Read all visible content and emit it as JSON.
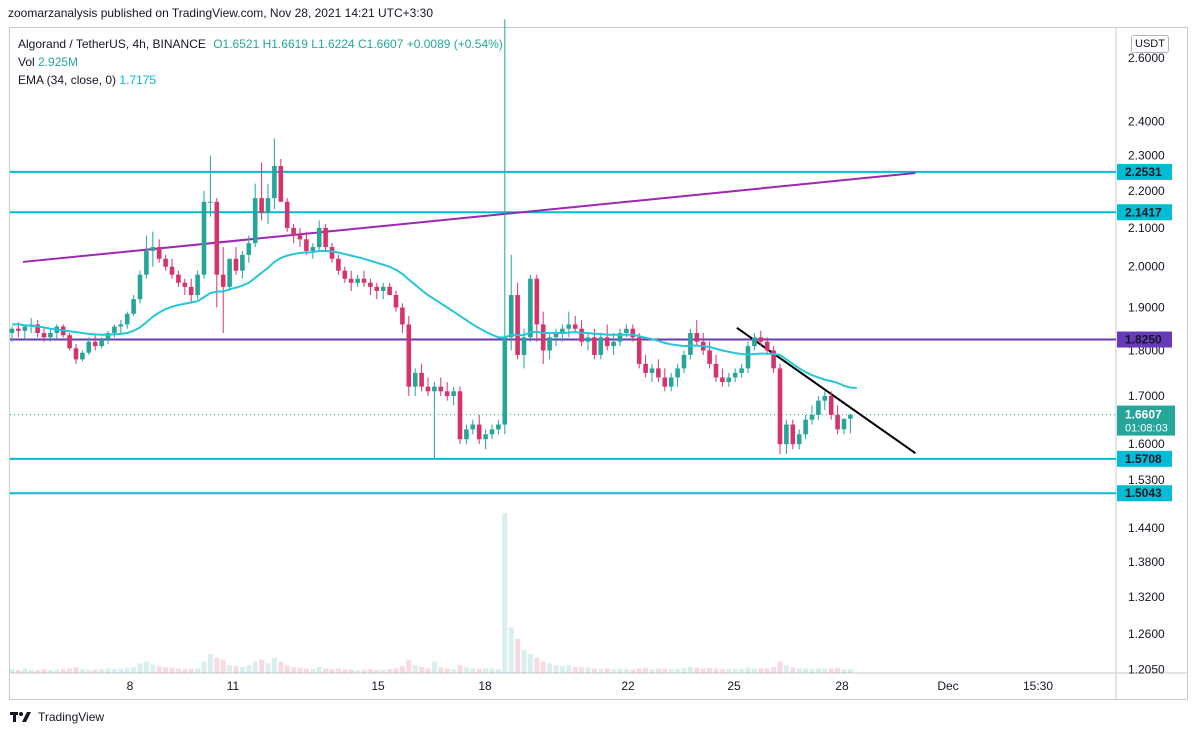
{
  "header": {
    "publish_line": "zoomarzanalysis published on TradingView.com, Nov 28, 2021 14:21 UTC+3:30"
  },
  "legend": {
    "symbol": "Algorand / TetherUS, 4h, BINANCE",
    "ohlc": "O1.6521 H1.6619 L1.6224 C1.6607 +0.0089 (+0.54%)",
    "vol_label": "Vol",
    "vol_value": "2.925M",
    "ema_label": "EMA (34, close, 0)",
    "ema_value": "1.7175"
  },
  "currency_label": "USDT",
  "footer": {
    "brand": "TradingView"
  },
  "colors": {
    "up": "#26a69a",
    "down": "#d6336c",
    "ema": "#26c6da",
    "level": "#00bcd4",
    "purple": "#9c27b0",
    "dark_purple": "#673ab7",
    "trend": "#000000"
  },
  "chart_data": {
    "type": "candlestick",
    "series": [
      {
        "name": "Algorand / TetherUS, 4h, BINANCE"
      },
      {
        "name": "EMA (34, close, 0)"
      }
    ],
    "x_ticks": [
      "8",
      "11",
      "15",
      "18",
      "22",
      "25",
      "28",
      "Dec",
      "15:30"
    ],
    "y_ticks": [
      "2.6000",
      "2.4000",
      "2.3000",
      "2.2000",
      "2.1000",
      "2.0000",
      "1.9000",
      "1.8000",
      "1.7000",
      "1.6000",
      "1.5300",
      "1.4400",
      "1.3800",
      "1.3200",
      "1.2600",
      "1.2050"
    ],
    "y_scale": "log",
    "ylim": [
      1.2,
      2.7
    ],
    "horizontal_levels": [
      {
        "value": 2.2531,
        "label": "2.2531",
        "color": "#00bcd4"
      },
      {
        "value": 2.1417,
        "label": "2.1417",
        "color": "#00bcd4"
      },
      {
        "value": 1.825,
        "label": "1.8250",
        "color": "#673ab7"
      },
      {
        "value": 1.5708,
        "label": "1.5708",
        "color": "#00bcd4"
      },
      {
        "value": 1.5043,
        "label": "1.5043",
        "color": "#00bcd4"
      }
    ],
    "current_price": {
      "value": 1.6607,
      "label": "1.6607",
      "countdown": "01:08:03"
    },
    "candles": [
      [
        1.84,
        1.855,
        1.82,
        1.85
      ],
      [
        1.85,
        1.865,
        1.83,
        1.845
      ],
      [
        1.845,
        1.86,
        1.825,
        1.855
      ],
      [
        1.855,
        1.875,
        1.84,
        1.86
      ],
      [
        1.86,
        1.87,
        1.83,
        1.84
      ],
      [
        1.84,
        1.855,
        1.82,
        1.83
      ],
      [
        1.83,
        1.85,
        1.82,
        1.84
      ],
      [
        1.84,
        1.86,
        1.825,
        1.855
      ],
      [
        1.855,
        1.86,
        1.83,
        1.835
      ],
      [
        1.835,
        1.84,
        1.8,
        1.805
      ],
      [
        1.805,
        1.815,
        1.77,
        1.78
      ],
      [
        1.78,
        1.8,
        1.775,
        1.795
      ],
      [
        1.795,
        1.83,
        1.79,
        1.82
      ],
      [
        1.82,
        1.835,
        1.8,
        1.81
      ],
      [
        1.81,
        1.83,
        1.805,
        1.825
      ],
      [
        1.825,
        1.845,
        1.815,
        1.84
      ],
      [
        1.84,
        1.86,
        1.83,
        1.855
      ],
      [
        1.855,
        1.87,
        1.84,
        1.86
      ],
      [
        1.86,
        1.89,
        1.85,
        1.885
      ],
      [
        1.885,
        1.93,
        1.88,
        1.92
      ],
      [
        1.92,
        1.99,
        1.91,
        1.98
      ],
      [
        1.98,
        2.08,
        1.97,
        2.04
      ],
      [
        2.04,
        2.09,
        2.0,
        2.05
      ],
      [
        2.05,
        2.07,
        2.01,
        2.02
      ],
      [
        2.02,
        2.03,
        1.99,
        2.0
      ],
      [
        2.0,
        2.02,
        1.97,
        1.98
      ],
      [
        1.98,
        1.99,
        1.95,
        1.96
      ],
      [
        1.96,
        1.97,
        1.93,
        1.95
      ],
      [
        1.95,
        1.97,
        1.91,
        1.93
      ],
      [
        1.93,
        1.99,
        1.92,
        1.98
      ],
      [
        1.98,
        2.2,
        1.97,
        2.17
      ],
      [
        2.17,
        2.3,
        2.13,
        2.17
      ],
      [
        2.17,
        2.18,
        1.9,
        1.98
      ],
      [
        1.98,
        2.05,
        1.84,
        1.95
      ],
      [
        1.95,
        2.02,
        1.94,
        2.02
      ],
      [
        2.02,
        2.05,
        1.98,
        1.99
      ],
      [
        1.99,
        2.04,
        1.97,
        2.03
      ],
      [
        2.03,
        2.08,
        2.01,
        2.06
      ],
      [
        2.06,
        2.22,
        2.05,
        2.18
      ],
      [
        2.18,
        2.28,
        2.12,
        2.14
      ],
      [
        2.14,
        2.22,
        2.11,
        2.18
      ],
      [
        2.18,
        2.35,
        2.15,
        2.27
      ],
      [
        2.27,
        2.29,
        2.17,
        2.17
      ],
      [
        2.17,
        2.18,
        2.09,
        2.1
      ],
      [
        2.1,
        2.11,
        2.06,
        2.08
      ],
      [
        2.08,
        2.1,
        2.05,
        2.07
      ],
      [
        2.07,
        2.09,
        2.03,
        2.04
      ],
      [
        2.04,
        2.06,
        2.02,
        2.05
      ],
      [
        2.05,
        2.12,
        2.04,
        2.1
      ],
      [
        2.1,
        2.11,
        2.04,
        2.05
      ],
      [
        2.05,
        2.06,
        2.01,
        2.02
      ],
      [
        2.02,
        2.03,
        1.98,
        1.99
      ],
      [
        1.99,
        2.0,
        1.96,
        1.97
      ],
      [
        1.97,
        1.99,
        1.94,
        1.96
      ],
      [
        1.96,
        1.98,
        1.95,
        1.97
      ],
      [
        1.97,
        1.99,
        1.95,
        1.96
      ],
      [
        1.96,
        1.97,
        1.93,
        1.95
      ],
      [
        1.95,
        1.96,
        1.92,
        1.94
      ],
      [
        1.94,
        1.96,
        1.92,
        1.95
      ],
      [
        1.95,
        1.96,
        1.93,
        1.93
      ],
      [
        1.93,
        1.94,
        1.89,
        1.9
      ],
      [
        1.9,
        1.91,
        1.84,
        1.86
      ],
      [
        1.86,
        1.88,
        1.7,
        1.72
      ],
      [
        1.72,
        1.76,
        1.7,
        1.75
      ],
      [
        1.75,
        1.77,
        1.71,
        1.72
      ],
      [
        1.72,
        1.74,
        1.7,
        1.71
      ],
      [
        1.71,
        1.73,
        1.57,
        1.72
      ],
      [
        1.72,
        1.74,
        1.7,
        1.71
      ],
      [
        1.71,
        1.73,
        1.69,
        1.7
      ],
      [
        1.7,
        1.72,
        1.68,
        1.71
      ],
      [
        1.71,
        1.72,
        1.6,
        1.61
      ],
      [
        1.61,
        1.64,
        1.6,
        1.63
      ],
      [
        1.63,
        1.65,
        1.62,
        1.64
      ],
      [
        1.64,
        1.66,
        1.6,
        1.61
      ],
      [
        1.61,
        1.63,
        1.59,
        1.62
      ],
      [
        1.62,
        1.64,
        1.61,
        1.63
      ],
      [
        1.63,
        1.65,
        1.62,
        1.64
      ],
      [
        1.64,
        2.73,
        1.62,
        1.83
      ],
      [
        1.83,
        2.03,
        1.8,
        1.93
      ],
      [
        1.93,
        1.96,
        1.78,
        1.79
      ],
      [
        1.79,
        1.85,
        1.76,
        1.83
      ],
      [
        1.83,
        1.98,
        1.82,
        1.97
      ],
      [
        1.97,
        1.98,
        1.82,
        1.86
      ],
      [
        1.86,
        1.89,
        1.77,
        1.8
      ],
      [
        1.8,
        1.84,
        1.78,
        1.83
      ],
      [
        1.83,
        1.85,
        1.81,
        1.84
      ],
      [
        1.84,
        1.86,
        1.82,
        1.85
      ],
      [
        1.85,
        1.89,
        1.83,
        1.86
      ],
      [
        1.86,
        1.88,
        1.84,
        1.85
      ],
      [
        1.85,
        1.87,
        1.81,
        1.82
      ],
      [
        1.82,
        1.84,
        1.8,
        1.83
      ],
      [
        1.83,
        1.85,
        1.78,
        1.79
      ],
      [
        1.79,
        1.84,
        1.78,
        1.83
      ],
      [
        1.83,
        1.86,
        1.8,
        1.81
      ],
      [
        1.81,
        1.84,
        1.79,
        1.82
      ],
      [
        1.82,
        1.85,
        1.81,
        1.84
      ],
      [
        1.84,
        1.86,
        1.83,
        1.85
      ],
      [
        1.85,
        1.86,
        1.82,
        1.83
      ],
      [
        1.83,
        1.84,
        1.76,
        1.77
      ],
      [
        1.77,
        1.79,
        1.74,
        1.75
      ],
      [
        1.75,
        1.77,
        1.73,
        1.76
      ],
      [
        1.76,
        1.78,
        1.73,
        1.74
      ],
      [
        1.74,
        1.76,
        1.71,
        1.72
      ],
      [
        1.72,
        1.75,
        1.71,
        1.74
      ],
      [
        1.74,
        1.77,
        1.72,
        1.76
      ],
      [
        1.76,
        1.8,
        1.75,
        1.79
      ],
      [
        1.79,
        1.85,
        1.78,
        1.84
      ],
      [
        1.84,
        1.87,
        1.81,
        1.82
      ],
      [
        1.82,
        1.84,
        1.79,
        1.8
      ],
      [
        1.8,
        1.82,
        1.76,
        1.77
      ],
      [
        1.77,
        1.79,
        1.73,
        1.74
      ],
      [
        1.74,
        1.76,
        1.72,
        1.73
      ],
      [
        1.73,
        1.75,
        1.72,
        1.74
      ],
      [
        1.74,
        1.76,
        1.73,
        1.75
      ],
      [
        1.75,
        1.77,
        1.74,
        1.76
      ],
      [
        1.76,
        1.82,
        1.75,
        1.81
      ],
      [
        1.81,
        1.84,
        1.8,
        1.83
      ],
      [
        1.83,
        1.845,
        1.81,
        1.82
      ],
      [
        1.82,
        1.83,
        1.79,
        1.8
      ],
      [
        1.8,
        1.81,
        1.75,
        1.76
      ],
      [
        1.76,
        1.77,
        1.58,
        1.6
      ],
      [
        1.6,
        1.65,
        1.58,
        1.64
      ],
      [
        1.64,
        1.65,
        1.59,
        1.6
      ],
      [
        1.6,
        1.63,
        1.59,
        1.62
      ],
      [
        1.62,
        1.66,
        1.61,
        1.65
      ],
      [
        1.65,
        1.68,
        1.64,
        1.66
      ],
      [
        1.66,
        1.7,
        1.65,
        1.69
      ],
      [
        1.69,
        1.71,
        1.67,
        1.7
      ],
      [
        1.7,
        1.71,
        1.65,
        1.66
      ],
      [
        1.66,
        1.68,
        1.62,
        1.63
      ],
      [
        1.63,
        1.65,
        1.62,
        1.652
      ],
      [
        1.652,
        1.662,
        1.622,
        1.6607
      ]
    ],
    "ema": [
      1.86,
      1.86,
      1.858,
      1.857,
      1.855,
      1.853,
      1.85,
      1.848,
      1.846,
      1.844,
      1.842,
      1.84,
      1.838,
      1.837,
      1.836,
      1.836,
      1.837,
      1.838,
      1.84,
      1.845,
      1.853,
      1.865,
      1.878,
      1.888,
      1.896,
      1.902,
      1.906,
      1.909,
      1.912,
      1.915,
      1.925,
      1.935,
      1.938,
      1.939,
      1.944,
      1.948,
      1.953,
      1.96,
      1.972,
      1.985,
      1.997,
      2.012,
      2.022,
      2.028,
      2.032,
      2.035,
      2.036,
      2.037,
      2.04,
      2.04,
      2.039,
      2.036,
      2.032,
      2.028,
      2.024,
      2.02,
      2.015,
      2.01,
      2.005,
      2.0,
      1.992,
      1.982,
      1.968,
      1.955,
      1.942,
      1.93,
      1.92,
      1.91,
      1.9,
      1.89,
      1.88,
      1.87,
      1.86,
      1.851,
      1.843,
      1.836,
      1.83,
      1.83,
      1.836,
      1.835,
      1.835,
      1.842,
      1.843,
      1.84,
      1.84,
      1.84,
      1.84,
      1.841,
      1.842,
      1.84,
      1.84,
      1.838,
      1.838,
      1.836,
      1.836,
      1.836,
      1.836,
      1.836,
      1.833,
      1.829,
      1.826,
      1.822,
      1.817,
      1.814,
      1.812,
      1.81,
      1.811,
      1.811,
      1.81,
      1.808,
      1.804,
      1.8,
      1.797,
      1.794,
      1.792,
      1.791,
      1.792,
      1.793,
      1.793,
      1.792,
      1.79,
      1.78,
      1.77,
      1.76,
      1.752,
      1.745,
      1.74,
      1.735,
      1.732,
      1.728,
      1.722,
      1.718,
      1.7175
    ],
    "volume": [
      0.1,
      0.08,
      0.12,
      0.09,
      0.07,
      0.1,
      0.08,
      0.09,
      0.1,
      0.12,
      0.15,
      0.1,
      0.08,
      0.09,
      0.1,
      0.12,
      0.1,
      0.11,
      0.13,
      0.16,
      0.25,
      0.3,
      0.22,
      0.18,
      0.15,
      0.14,
      0.12,
      0.1,
      0.11,
      0.12,
      0.3,
      0.5,
      0.4,
      0.35,
      0.2,
      0.18,
      0.16,
      0.2,
      0.3,
      0.35,
      0.25,
      0.4,
      0.3,
      0.2,
      0.15,
      0.14,
      0.12,
      0.11,
      0.16,
      0.12,
      0.1,
      0.12,
      0.1,
      0.09,
      0.08,
      0.09,
      0.1,
      0.08,
      0.09,
      0.1,
      0.12,
      0.18,
      0.35,
      0.2,
      0.15,
      0.12,
      0.3,
      0.15,
      0.12,
      0.1,
      0.2,
      0.15,
      0.12,
      0.11,
      0.13,
      0.12,
      0.1,
      4.2,
      1.2,
      0.9,
      0.6,
      0.5,
      0.4,
      0.3,
      0.25,
      0.2,
      0.18,
      0.2,
      0.16,
      0.15,
      0.14,
      0.12,
      0.11,
      0.12,
      0.1,
      0.11,
      0.1,
      0.09,
      0.12,
      0.14,
      0.1,
      0.12,
      0.11,
      0.1,
      0.11,
      0.13,
      0.16,
      0.14,
      0.12,
      0.13,
      0.12,
      0.1,
      0.11,
      0.1,
      0.11,
      0.14,
      0.12,
      0.12,
      0.12,
      0.15,
      0.3,
      0.2,
      0.15,
      0.12,
      0.12,
      0.11,
      0.12,
      0.11,
      0.12,
      0.14,
      0.1,
      0.1
    ],
    "trendlines": [
      {
        "name": "rising-purple",
        "points": [
          [
            "Nov 5",
            2.012
          ],
          [
            "Nov 30",
            2.25
          ]
        ],
        "color": "#9c27b0"
      },
      {
        "name": "descending-black",
        "points": [
          [
            "Nov 25",
            1.852
          ],
          [
            "Nov 30",
            1.582
          ]
        ],
        "color": "#000000"
      }
    ]
  }
}
